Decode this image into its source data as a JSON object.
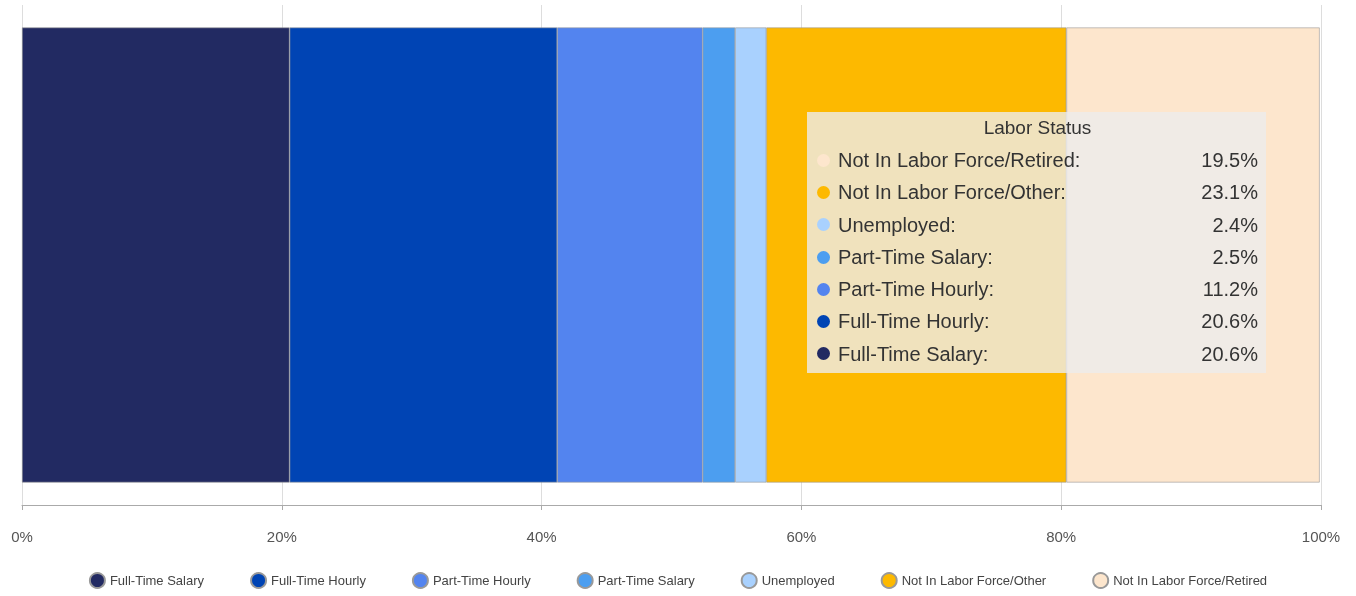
{
  "chart_data": {
    "type": "bar",
    "orientation": "horizontal",
    "stacked": true,
    "categories": [
      null
    ],
    "series": [
      {
        "name": "Full-Time Salary",
        "color": "#222a62",
        "values": [
          20.6
        ]
      },
      {
        "name": "Full-Time Hourly",
        "color": "#0044b4",
        "values": [
          20.6
        ]
      },
      {
        "name": "Part-Time Hourly",
        "color": "#5384ef",
        "values": [
          11.2
        ]
      },
      {
        "name": "Part-Time Salary",
        "color": "#4c9ef0",
        "values": [
          2.5
        ]
      },
      {
        "name": "Unemployed",
        "color": "#a9d1fe",
        "values": [
          2.4
        ]
      },
      {
        "name": "Not In Labor Force/Other",
        "color": "#fdb900",
        "values": [
          23.1
        ]
      },
      {
        "name": "Not In Labor Force/Retired",
        "color": "#fde6cd",
        "values": [
          19.5
        ]
      }
    ],
    "annotations": [
      "Labor Status",
      "Not In Labor Force/Retired:",
      "19.5%",
      "Not In Labor Force/Other:",
      "23.1%",
      "Unemployed:",
      "2.4%",
      "Part-Time Salary:",
      "2.5%",
      "Part-Time Hourly:",
      "11.2%",
      "Full-Time Hourly:",
      "20.6%",
      "Full-Time Salary:",
      "20.6%"
    ],
    "xlim": [
      0,
      100
    ],
    "xticks": [
      {
        "value": 0,
        "label": "0%"
      },
      {
        "value": 20,
        "label": "20%"
      },
      {
        "value": 40,
        "label": "40%"
      },
      {
        "value": 60,
        "label": "60%"
      },
      {
        "value": 80,
        "label": "80%"
      },
      {
        "value": 100,
        "label": "100%"
      }
    ],
    "grid": "x",
    "legend": "bottom",
    "tick_labels": "x"
  }
}
